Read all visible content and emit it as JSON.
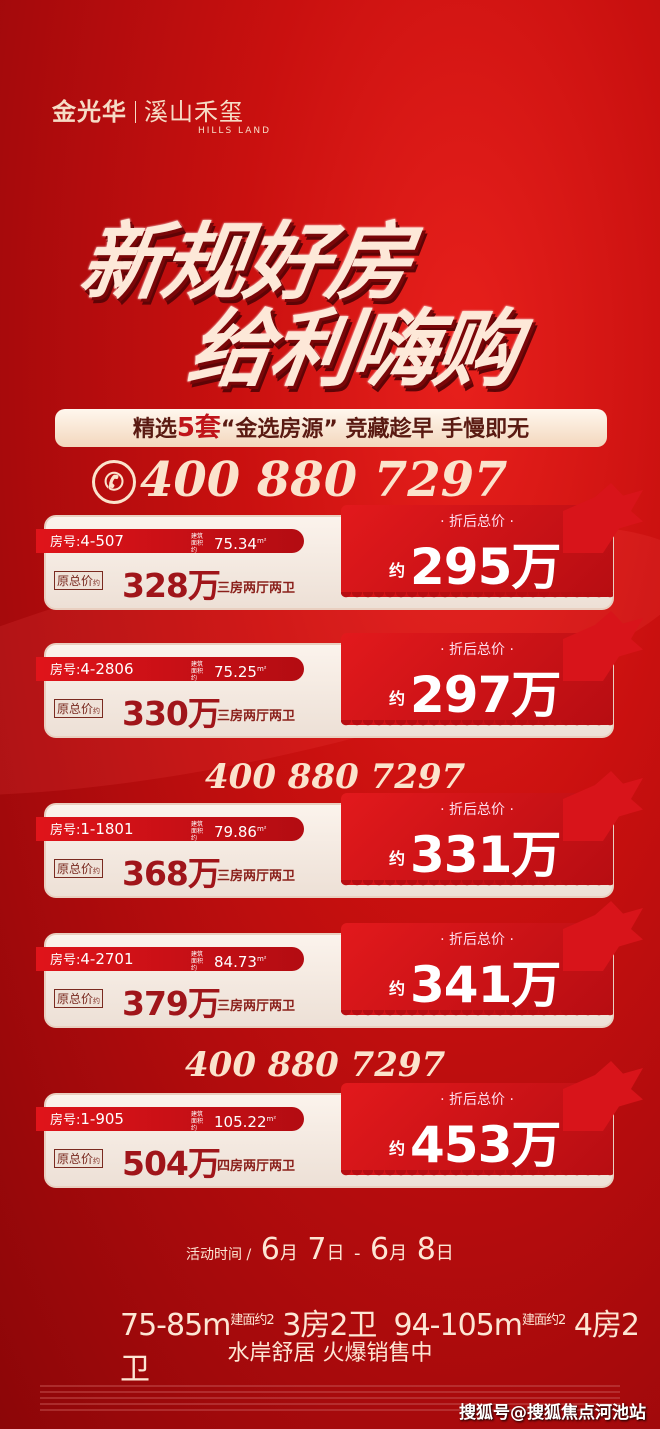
{
  "brand": {
    "name": "金光华",
    "project": "溪山禾玺",
    "project_en": "HILLS LAND"
  },
  "headline": {
    "line1": "新规好房",
    "line2": "给利嗨购"
  },
  "tagline": {
    "pre": "精选",
    "count": "5套",
    "post": "“金选房源” 竞藏趁早 手慢即无"
  },
  "phone": "400 880 7297",
  "labels": {
    "room": "房号:",
    "area": "建筑面积约",
    "unit_m2": "m²",
    "orig": "原总价",
    "orig_suffix": "约",
    "disc": "· 折后总价 ·",
    "about": "约"
  },
  "listings": [
    {
      "room": "4-507",
      "area": "75.34",
      "orig": "328万",
      "layout": "三房两厅两卫",
      "disc": "295万"
    },
    {
      "room": "4-2806",
      "area": "75.25",
      "orig": "330万",
      "layout": "三房两厅两卫",
      "disc": "297万"
    },
    {
      "room": "1-1801",
      "area": "79.86",
      "orig": "368万",
      "layout": "三房两厅两卫",
      "disc": "331万"
    },
    {
      "room": "4-2701",
      "area": "84.73",
      "orig": "379万",
      "layout": "三房两厅两卫",
      "disc": "341万"
    },
    {
      "room": "1-905",
      "area": "105.22",
      "orig": "504万",
      "layout": "四房两厅两卫",
      "disc": "453万"
    }
  ],
  "event": {
    "label": "活动时间 /",
    "m1": "6",
    "d1": "7",
    "m2": "6",
    "d2": "8",
    "month": "月",
    "day": "日",
    "dash": "-"
  },
  "sizes": {
    "a": "75-85m",
    "a_note": "建面约2",
    "a_type": "3房2卫",
    "b": "94-105m",
    "b_note": "建面约2",
    "b_type": "4房2卫"
  },
  "slogan": "水岸舒居 火爆销售中",
  "watermark": "搜狐号@搜狐焦点河池站",
  "colors": {
    "background": "#c9100f",
    "accent": "#e2191c",
    "cream": "#fde6d4"
  }
}
